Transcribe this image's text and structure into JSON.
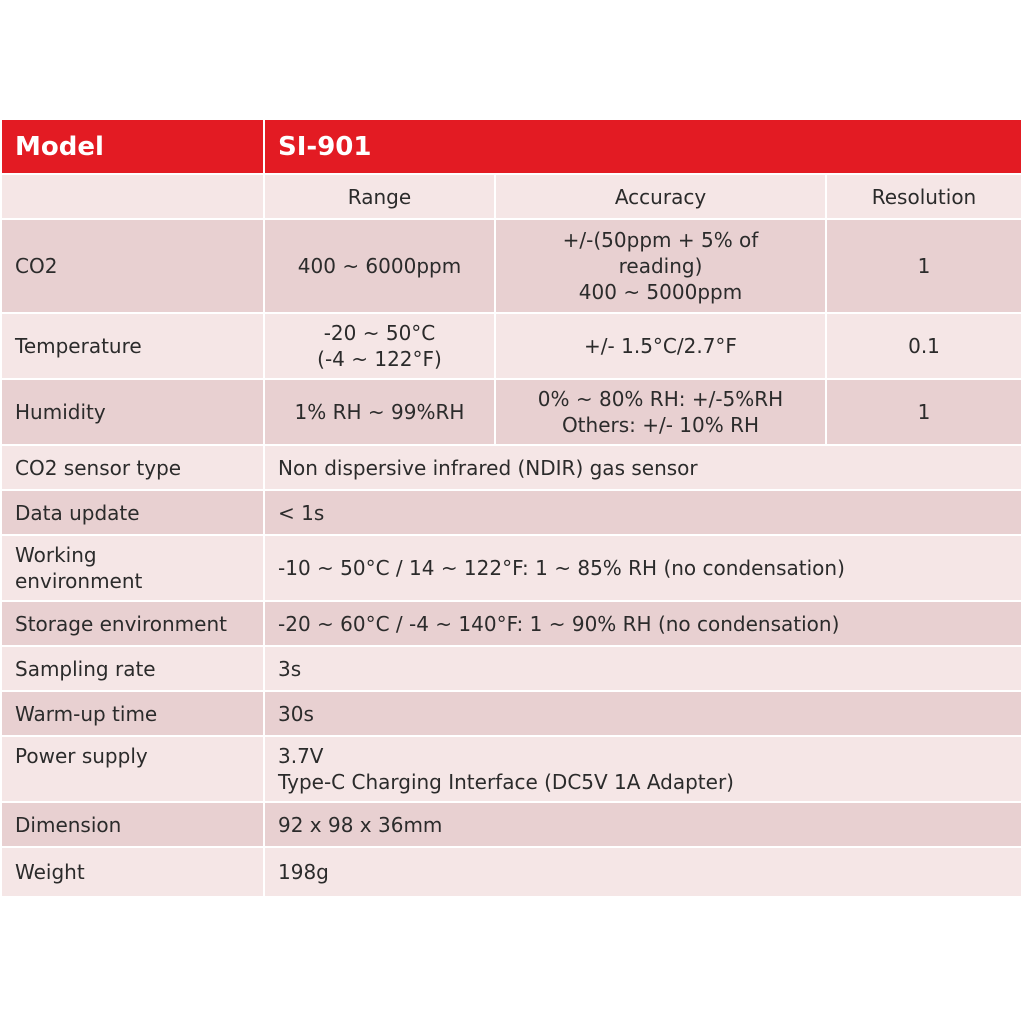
{
  "header": {
    "model_label": "Model",
    "model_value": "SI-901"
  },
  "subheader": {
    "range": "Range",
    "accuracy": "Accuracy",
    "resolution": "Resolution"
  },
  "measurements": [
    {
      "label": "CO2",
      "range": [
        "400 ~ 6000ppm"
      ],
      "accuracy": [
        "+/-(50ppm + 5% of",
        "reading)",
        "400 ~ 5000ppm"
      ],
      "resolution": "1"
    },
    {
      "label": "Temperature",
      "range": [
        "-20 ~ 50°C",
        "(-4 ~ 122°F)"
      ],
      "accuracy": [
        "+/- 1.5°C/2.7°F"
      ],
      "resolution": "0.1"
    },
    {
      "label": "Humidity",
      "range": [
        "1% RH ~ 99%RH"
      ],
      "accuracy": [
        "0% ~ 80% RH: +/-5%RH",
        "Others: +/- 10% RH"
      ],
      "resolution": "1"
    }
  ],
  "specs": [
    {
      "label": [
        "CO2 sensor type"
      ],
      "value": [
        "Non dispersive infrared (NDIR) gas sensor"
      ]
    },
    {
      "label": [
        "Data update"
      ],
      "value": [
        "< 1s"
      ]
    },
    {
      "label": [
        "Working",
        "environment"
      ],
      "value": [
        "-10 ~ 50°C / 14 ~ 122°F: 1 ~ 85% RH (no condensation)"
      ]
    },
    {
      "label": [
        "Storage environment"
      ],
      "value": [
        "-20 ~ 60°C / -4 ~ 140°F: 1 ~ 90% RH (no condensation)"
      ]
    },
    {
      "label": [
        "Sampling rate"
      ],
      "value": [
        "3s"
      ]
    },
    {
      "label": [
        "Warm-up time"
      ],
      "value": [
        "30s"
      ]
    },
    {
      "label": [
        "Power supply"
      ],
      "value": [
        "3.7V",
        "Type-C Charging Interface (DC5V 1A Adapter)"
      ]
    },
    {
      "label": [
        "Dimension"
      ],
      "value": [
        "92 x 98 x 36mm"
      ]
    },
    {
      "label": [
        "Weight"
      ],
      "value": [
        "198g"
      ]
    }
  ],
  "colors": {
    "header_red": "#e31b23",
    "row_dark": "#e8d0d1",
    "row_light": "#f5e6e6"
  }
}
